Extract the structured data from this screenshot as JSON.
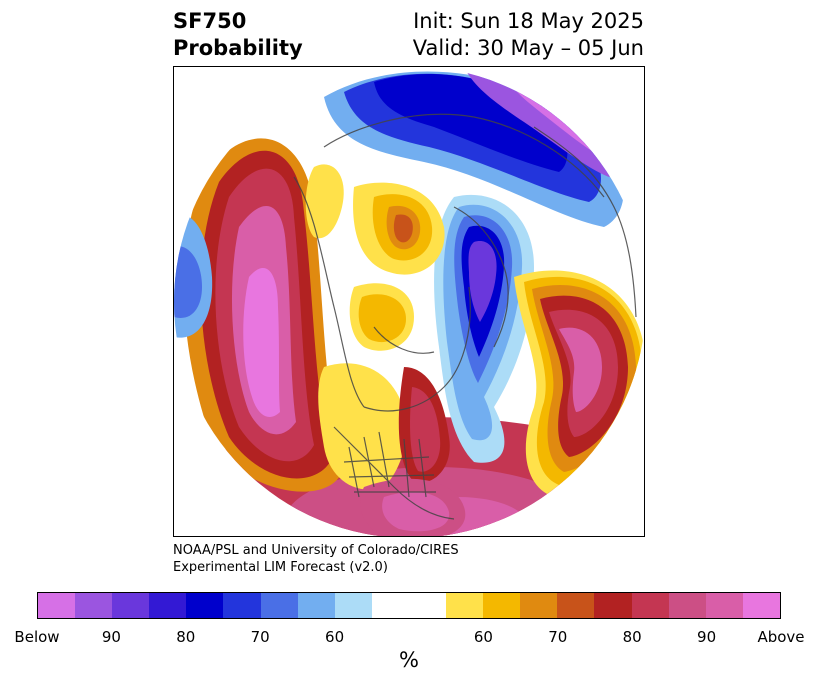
{
  "title": {
    "left_line1": "SF750",
    "left_line2": "Probability",
    "right_line1": "Init: Sun 18 May 2025",
    "right_line2": "Valid: 30 May – 05 Jun"
  },
  "credit": {
    "line1": "NOAA/PSL and University of Colorado/CIRES",
    "line2": "Experimental LIM Forecast (v2.0)"
  },
  "colorbar": {
    "unit": "%",
    "colors": [
      "#d670e6",
      "#9b55e0",
      "#6a37dc",
      "#3319d4",
      "#0000cc",
      "#2335dc",
      "#4a6fe6",
      "#72aef0",
      "#acdcf7",
      "#ffffff",
      "#ffe14a",
      "#f4b800",
      "#e08a10",
      "#c8531a",
      "#b22222",
      "#c43652",
      "#cc4f85",
      "#d95ea8",
      "#e876df"
    ],
    "tick_labels": [
      "Below",
      "90",
      "80",
      "70",
      "60",
      "60",
      "70",
      "80",
      "90",
      "Above"
    ]
  },
  "map": {
    "projection": "north-polar-stereographic",
    "region": "Northern Hemisphere",
    "description_colors": {
      "below_strong": "#9b55e0",
      "below": "#0000cc",
      "above_strong": "#e876df",
      "above": "#b22222"
    }
  }
}
